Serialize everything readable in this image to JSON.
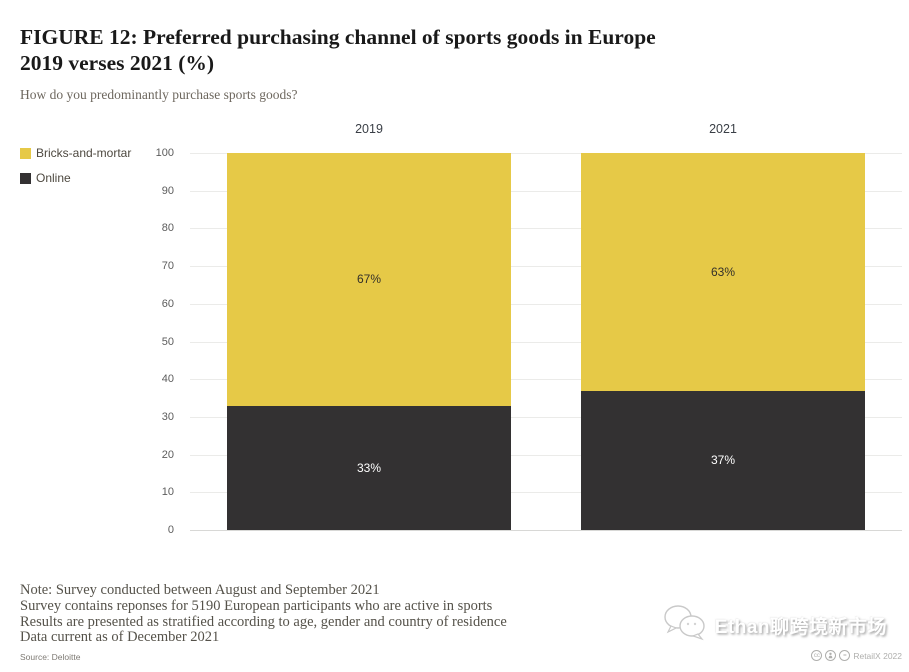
{
  "header": {
    "title_line1": "FIGURE 12: Preferred purchasing channel of sports goods in Europe",
    "title_line2": "2019 verses 2021 (%)",
    "subtitle": "How do you predominantly purchase sports goods?"
  },
  "chart_data": {
    "type": "bar",
    "stacked": true,
    "title": "Preferred purchasing channel of sports goods in Europe 2019 verses 2021 (%)",
    "categories": [
      "2019",
      "2021"
    ],
    "series": [
      {
        "name": "Online",
        "color": "#333132",
        "label_color": "#ffffff",
        "values": [
          33,
          37
        ]
      },
      {
        "name": "Bricks-and-mortar",
        "color": "#e6c947",
        "label_color": "#33302a",
        "values": [
          67,
          63
        ]
      }
    ],
    "value_suffix": "%",
    "ylim": [
      0,
      100
    ],
    "yticks": [
      0,
      10,
      20,
      30,
      40,
      50,
      60,
      70,
      80,
      90,
      100
    ],
    "grid": true,
    "legend_position": "top-left",
    "legend_order": [
      "Bricks-and-mortar",
      "Online"
    ]
  },
  "notes": [
    "Note: Survey conducted between August and September 2021",
    "Survey contains reponses for 5190 European participants who are active in sports",
    "Results are presented as stratified according to age, gender and country of residence",
    "Data current as of December 2021"
  ],
  "footer": {
    "source": "Source: Deloitte",
    "credit": "RetailX 2022",
    "license_icons": [
      "cc",
      "by",
      "nd"
    ]
  },
  "watermark": {
    "text": "Ethan聊跨境新市场"
  },
  "colors": {
    "bricks_and_mortar": "#e6c947",
    "online": "#333132",
    "gridline": "#ebebe9",
    "axis_text": "#5c5c5c"
  }
}
